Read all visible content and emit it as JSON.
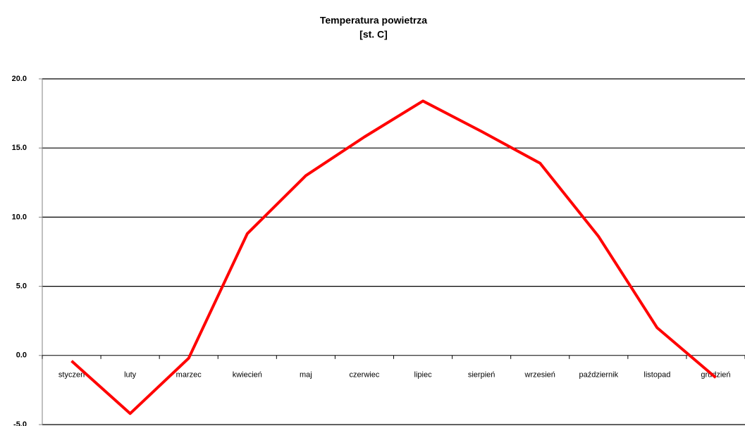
{
  "chart_data": {
    "type": "line",
    "title": "Temperatura powietrza",
    "subtitle": "[st. C]",
    "categories": [
      "styczeń",
      "luty",
      "marzec",
      "kwiecień",
      "maj",
      "czerwiec",
      "lipiec",
      "sierpień",
      "wrzesień",
      "październik",
      "listopad",
      "grudzień"
    ],
    "values": [
      -0.4,
      -4.2,
      -0.2,
      8.8,
      13.0,
      15.8,
      18.4,
      16.2,
      13.9,
      8.6,
      2.0,
      -1.6
    ],
    "color": "#ff0000",
    "ylim": [
      -5,
      20
    ],
    "yticks": [
      {
        "value": -5,
        "label": "-5.0"
      },
      {
        "value": 0,
        "label": "0.0"
      },
      {
        "value": 5,
        "label": "5.0"
      },
      {
        "value": 10,
        "label": "10.0"
      },
      {
        "value": 15,
        "label": "15.0"
      },
      {
        "value": 20,
        "label": "20.0"
      }
    ],
    "grid": true
  }
}
